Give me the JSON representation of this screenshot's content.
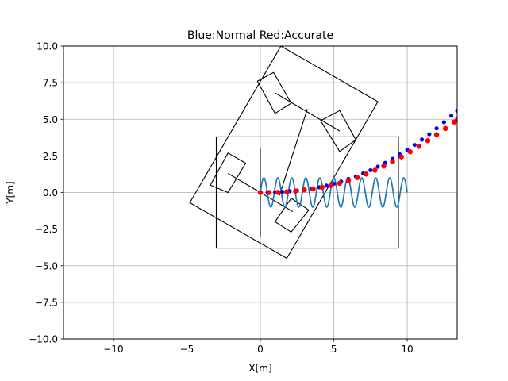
{
  "chart_data": {
    "type": "line",
    "title": "Blue:Normal Red:Accurate",
    "xlabel": "X[m]",
    "ylabel": "Y[m]",
    "xlim": [
      -13.4,
      13.4
    ],
    "ylim": [
      -10,
      10
    ],
    "xticks": [
      -10,
      -5,
      0,
      5,
      10
    ],
    "yticks": [
      -10.0,
      -7.5,
      -5.0,
      -2.5,
      0.0,
      2.5,
      5.0,
      7.5,
      10.0
    ],
    "xtick_labels": [
      "−10",
      "−5",
      "0",
      "5",
      "10"
    ],
    "ytick_labels": [
      "−10.0",
      "−7.5",
      "−5.0",
      "−2.5",
      "0.0",
      "2.5",
      "5.0",
      "7.5",
      "10.0"
    ],
    "grid": true,
    "colors": {
      "normal": "#0000ff",
      "accurate": "#ff0000",
      "wave": "#1f77b4",
      "outline": "#000000",
      "grid": "#b0b0b0"
    },
    "series": [
      {
        "role": "normal",
        "style": "dots",
        "points": [
          [
            0.0,
            0.0
          ],
          [
            0.5,
            0.01
          ],
          [
            1.0,
            0.03
          ],
          [
            1.5,
            0.05
          ],
          [
            2.0,
            0.09
          ],
          [
            2.5,
            0.13
          ],
          [
            3.0,
            0.2
          ],
          [
            3.5,
            0.27
          ],
          [
            4.0,
            0.36
          ],
          [
            4.5,
            0.47
          ],
          [
            5.0,
            0.6
          ],
          [
            5.5,
            0.75
          ],
          [
            6.0,
            0.92
          ],
          [
            6.5,
            1.1
          ],
          [
            7.0,
            1.3
          ],
          [
            7.5,
            1.52
          ],
          [
            8.0,
            1.76
          ],
          [
            8.5,
            2.02
          ],
          [
            9.0,
            2.3
          ],
          [
            9.5,
            2.6
          ],
          [
            10.0,
            2.92
          ],
          [
            10.5,
            3.25
          ],
          [
            11.0,
            3.61
          ],
          [
            11.5,
            3.98
          ],
          [
            12.0,
            4.38
          ],
          [
            12.5,
            4.8
          ],
          [
            13.0,
            5.24
          ],
          [
            13.4,
            5.59
          ]
        ]
      },
      {
        "role": "accurate",
        "style": "dots",
        "points": [
          [
            0.0,
            0.0
          ],
          [
            0.6,
            0.0
          ],
          [
            1.2,
            0.01
          ],
          [
            1.8,
            0.05
          ],
          [
            2.4,
            0.1
          ],
          [
            3.0,
            0.17
          ],
          [
            3.6,
            0.25
          ],
          [
            4.2,
            0.35
          ],
          [
            4.8,
            0.48
          ],
          [
            5.4,
            0.63
          ],
          [
            6.0,
            0.81
          ],
          [
            6.6,
            1.02
          ],
          [
            7.2,
            1.26
          ],
          [
            7.8,
            1.52
          ],
          [
            8.4,
            1.8
          ],
          [
            9.0,
            2.1
          ],
          [
            9.6,
            2.43
          ],
          [
            10.2,
            2.78
          ],
          [
            10.8,
            3.15
          ],
          [
            11.4,
            3.54
          ],
          [
            12.0,
            3.95
          ],
          [
            12.6,
            4.37
          ],
          [
            13.2,
            4.81
          ],
          [
            13.4,
            4.96
          ]
        ]
      },
      {
        "role": "wave",
        "style": "line",
        "x_range": [
          0,
          10
        ],
        "amplitude": 1.0,
        "cycles": 10.5
      }
    ],
    "shapes": [
      {
        "name": "vehicle-body",
        "points": [
          [
            -4.8,
            -0.7
          ],
          [
            1.8,
            -4.5
          ],
          [
            8.0,
            6.2
          ],
          [
            1.4,
            10.0
          ]
        ]
      },
      {
        "name": "front-left-wheel",
        "points": [
          [
            -0.2,
            7.6
          ],
          [
            0.9,
            8.2
          ],
          [
            2.1,
            6.1
          ],
          [
            1.0,
            5.4
          ]
        ]
      },
      {
        "name": "front-right-wheel",
        "points": [
          [
            4.1,
            4.9
          ],
          [
            5.4,
            5.6
          ],
          [
            6.5,
            3.6
          ],
          [
            5.4,
            2.8
          ]
        ]
      },
      {
        "name": "rear-left-wheel",
        "points": [
          [
            -2.2,
            2.7
          ],
          [
            -1.0,
            2.0
          ],
          [
            -2.2,
            0.0
          ],
          [
            -3.4,
            0.5
          ]
        ]
      },
      {
        "name": "rear-right-wheel",
        "points": [
          [
            2.1,
            -0.4
          ],
          [
            3.3,
            -1.2
          ],
          [
            2.1,
            -2.7
          ],
          [
            1.0,
            -2.0
          ]
        ]
      },
      {
        "name": "bounding-box",
        "points": [
          [
            -3.0,
            3.8
          ],
          [
            9.4,
            3.8
          ],
          [
            9.4,
            -3.8
          ],
          [
            -3.0,
            -3.8
          ]
        ]
      }
    ],
    "segments": [
      {
        "name": "front-axle-line",
        "from": [
          1.0,
          6.8
        ],
        "to": [
          5.4,
          4.2
        ]
      },
      {
        "name": "rear-axle-line",
        "from": [
          -2.2,
          1.3
        ],
        "to": [
          2.2,
          -1.3
        ]
      },
      {
        "name": "vehicle-center-line",
        "from": [
          1.3,
          -0.2
        ],
        "to": [
          3.2,
          5.7
        ]
      },
      {
        "name": "y-axis-marker",
        "from": [
          0.0,
          3.0
        ],
        "to": [
          0.0,
          -3.0
        ]
      }
    ]
  }
}
